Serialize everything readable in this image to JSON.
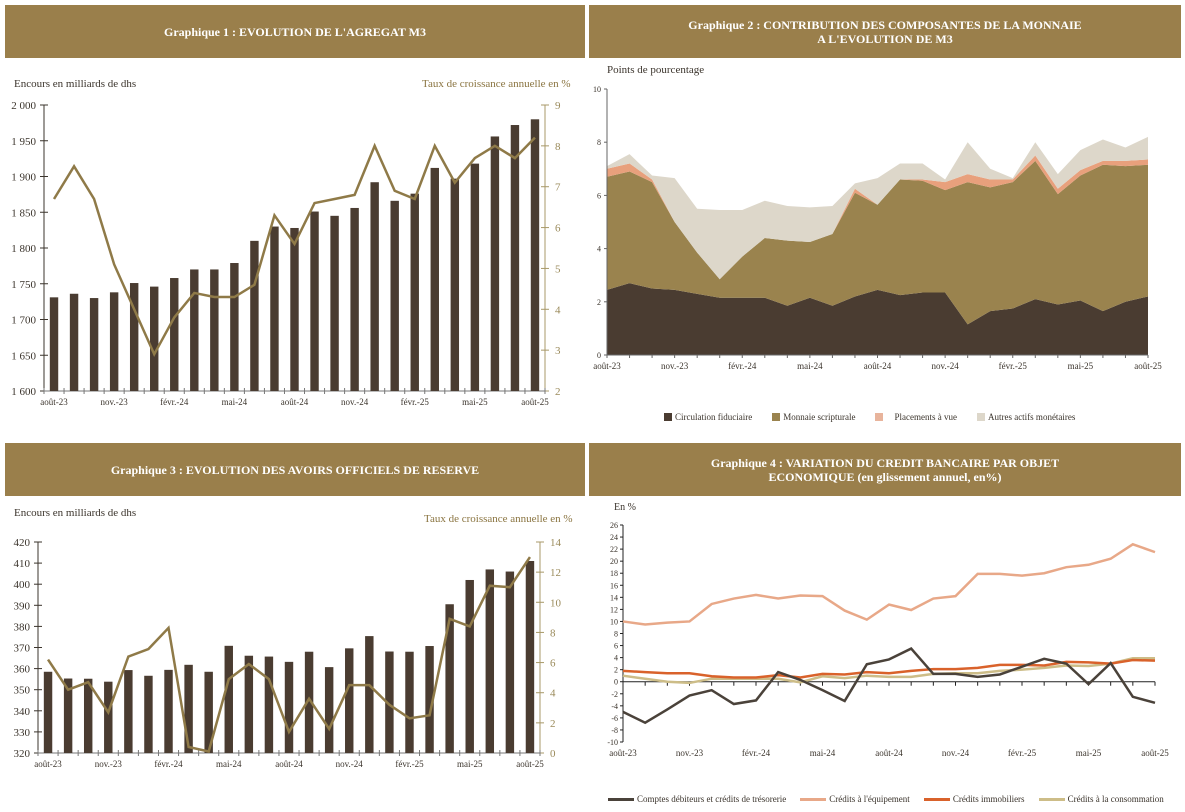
{
  "colors": {
    "header_bg": "#9a7f4b",
    "bar": "#4a3c31",
    "line_gold": "#8f7a48",
    "fiduciaire": "#4a3c31",
    "scripturale": "#9a834e",
    "placements": "#e8a07c",
    "autres": "#ddd7ca",
    "comptes": "#4a423a",
    "equipement": "#e8a888",
    "immobiliers": "#d9622b",
    "consommation": "#cdbd88"
  },
  "months": [
    "août-23",
    "sept.-23",
    "oct.-23",
    "nov.-23",
    "déc.-23",
    "janv.-24",
    "févr.-24",
    "mars-24",
    "avr.-24",
    "mai-24",
    "juin-24",
    "juil.-24",
    "août-24",
    "sept.-24",
    "oct.-24",
    "nov.-24",
    "déc.-24",
    "janv.-25",
    "févr.-25",
    "mars-25",
    "avr.-25",
    "mai-25",
    "juin-25",
    "juil.-25",
    "août-25"
  ],
  "chart_data": [
    {
      "id": "g1",
      "type": "bar",
      "title": "Graphique 1 : EVOLUTION DE L'AGREGAT M3",
      "ylabel": "Encours en milliards de dhs",
      "y2label": "Taux de croissance annuelle en %",
      "ylim": [
        1600,
        2000
      ],
      "yticks": [
        "1 600",
        "1 650",
        "1 700",
        "1 750",
        "1 800",
        "1 850",
        "1 900",
        "1 950",
        "2 000"
      ],
      "y2lim": [
        2,
        9
      ],
      "y2ticks": [
        "2",
        "3",
        "4",
        "5",
        "6",
        "7",
        "8",
        "9"
      ],
      "xtick_labels": [
        "août-23",
        "nov.-23",
        "févr.-24",
        "mai-24",
        "août-24",
        "nov.-24",
        "févr.-25",
        "mai-25",
        "août-25"
      ],
      "series": [
        {
          "name": "Encours M3",
          "kind": "bar",
          "axis": "left",
          "values": [
            1731,
            1736,
            1730,
            1738,
            1751,
            1746,
            1758,
            1770,
            1770,
            1779,
            1810,
            1830,
            1828,
            1851,
            1845,
            1856,
            1892,
            1866,
            1876,
            1912,
            1897,
            1918,
            1956,
            1972,
            1980
          ]
        },
        {
          "name": "Taux de croissance annuelle",
          "kind": "line",
          "axis": "right",
          "values": [
            6.7,
            7.5,
            6.7,
            5.1,
            4.0,
            2.9,
            3.8,
            4.4,
            4.3,
            4.3,
            4.6,
            6.3,
            5.6,
            6.6,
            6.7,
            6.8,
            8.0,
            6.9,
            6.7,
            8.0,
            7.1,
            7.7,
            8.0,
            7.7,
            8.2
          ]
        }
      ]
    },
    {
      "id": "g2",
      "type": "area",
      "title_line1": "Graphique 2 : CONTRIBUTION DES COMPOSANTES DE  LA MONNAIE",
      "title_line2": "A L'EVOLUTION DE M3",
      "ylabel": "Points de pourcentage",
      "ylim": [
        0,
        10
      ],
      "yticks": [
        "0",
        "2",
        "4",
        "6",
        "8",
        "10"
      ],
      "xtick_labels": [
        "août-23",
        "nov.-23",
        "févr.-24",
        "mai-24",
        "août-24",
        "nov.-24",
        "févr.-25",
        "mai-25",
        "août-25"
      ],
      "legend_position": "bottom",
      "series": [
        {
          "name": "Circulation fiduciaire",
          "values": [
            2.45,
            2.7,
            2.5,
            2.45,
            2.3,
            2.15,
            2.15,
            2.15,
            1.85,
            2.15,
            1.85,
            2.2,
            2.45,
            2.25,
            2.35,
            2.35,
            1.15,
            1.65,
            1.75,
            2.1,
            1.9,
            2.05,
            1.65,
            2.0,
            2.2
          ]
        },
        {
          "name": "Monnaie scripturale",
          "values": [
            4.25,
            4.2,
            4.0,
            2.55,
            1.55,
            0.7,
            1.55,
            2.25,
            2.45,
            2.1,
            2.7,
            3.9,
            3.2,
            4.35,
            4.2,
            3.85,
            5.35,
            4.65,
            4.75,
            5.2,
            4.15,
            4.7,
            5.5,
            5.1,
            4.95
          ]
        },
        {
          "name": "Placements à vue",
          "values": [
            0.3,
            0.3,
            0.1,
            0.0,
            0.0,
            0.0,
            0.0,
            0.0,
            0.0,
            0.0,
            0.0,
            0.15,
            0.0,
            0.0,
            0.05,
            0.3,
            0.3,
            0.3,
            0.1,
            0.2,
            0.2,
            0.2,
            0.15,
            0.2,
            0.2
          ]
        },
        {
          "name": "Autres actifs monétaires",
          "values": [
            0.1,
            0.35,
            0.15,
            1.65,
            1.65,
            2.6,
            1.75,
            1.4,
            1.3,
            1.3,
            1.05,
            0.2,
            1.0,
            0.6,
            0.6,
            0.1,
            1.2,
            0.4,
            0.05,
            0.5,
            0.55,
            0.75,
            0.8,
            0.5,
            0.85
          ]
        }
      ]
    },
    {
      "id": "g3",
      "type": "bar",
      "title": "Graphique 3 : EVOLUTION DES AVOIRS OFFICIELS DE RESERVE",
      "ylabel": "Encours en milliards de dhs",
      "y2label": "Taux de croissance annuelle en %",
      "ylim": [
        320,
        420
      ],
      "yticks": [
        "320",
        "330",
        "340",
        "350",
        "360",
        "370",
        "380",
        "390",
        "400",
        "410",
        "420"
      ],
      "y2lim": [
        0,
        14
      ],
      "y2ticks": [
        "0",
        "2",
        "4",
        "6",
        "8",
        "10",
        "12",
        "14"
      ],
      "xtick_labels": [
        "août-23",
        "nov.-23",
        "févr.-24",
        "mai-24",
        "août-24",
        "nov.-24",
        "févr.-25",
        "mai-25",
        "août-25"
      ],
      "series": [
        {
          "name": "Avoirs officiels de réserve",
          "kind": "bar",
          "axis": "left",
          "values": [
            358.5,
            355.3,
            355.2,
            353.8,
            359.3,
            356.6,
            359.4,
            361.8,
            358.5,
            370.8,
            366.1,
            365.7,
            363.2,
            368.0,
            360.7,
            369.6,
            375.4,
            368.1,
            368.0,
            370.7,
            390.5,
            402.0,
            407.0,
            406.0,
            411.0
          ]
        },
        {
          "name": "Taux de croissance annuelle",
          "kind": "line",
          "axis": "right",
          "values": [
            6.2,
            4.2,
            4.7,
            2.7,
            6.4,
            6.9,
            8.3,
            0.4,
            0.1,
            4.9,
            5.9,
            4.9,
            1.4,
            3.6,
            1.6,
            4.5,
            4.5,
            3.2,
            2.3,
            2.5,
            8.9,
            8.4,
            11.1,
            11.0,
            13.0
          ]
        }
      ]
    },
    {
      "id": "g4",
      "type": "line",
      "title_line1": "Graphique 4 : VARIATION DU CREDIT BANCAIRE PAR OBJET",
      "title_line2": "ECONOMIQUE (en glissement annuel, en%)",
      "ylabel": "En %",
      "ylim": [
        -10,
        26
      ],
      "yticks": [
        "-10",
        "-8",
        "-6",
        "-4",
        "-2",
        "0",
        "2",
        "4",
        "6",
        "8",
        "10",
        "12",
        "14",
        "16",
        "18",
        "20",
        "22",
        "24",
        "26"
      ],
      "xtick_labels": [
        "août-23",
        "nov.-23",
        "févr.-24",
        "mai-24",
        "août-24",
        "nov.-24",
        "févr.-25",
        "mai-25",
        "août-25"
      ],
      "legend_position": "bottom",
      "series": [
        {
          "name": "Comptes débiteurs et crédits de trésorerie",
          "values": [
            -5.0,
            -6.8,
            -4.6,
            -2.3,
            -1.4,
            -3.7,
            -3.1,
            1.6,
            0.3,
            -1.4,
            -3.2,
            2.9,
            3.7,
            5.5,
            1.3,
            1.3,
            0.8,
            1.2,
            2.5,
            3.8,
            3.0,
            -0.4,
            3.1,
            -2.5,
            -3.5
          ]
        },
        {
          "name": "Crédits à l'équipement",
          "values": [
            10.0,
            9.5,
            9.8,
            10.0,
            12.9,
            13.8,
            14.4,
            13.8,
            14.3,
            14.2,
            11.8,
            10.3,
            12.8,
            11.9,
            13.8,
            14.2,
            17.9,
            17.9,
            17.6,
            18.0,
            19.0,
            19.4,
            20.4,
            22.8,
            21.5
          ]
        },
        {
          "name": "Crédits immobiliers",
          "values": [
            1.8,
            1.6,
            1.4,
            1.4,
            0.9,
            0.7,
            0.7,
            1.1,
            0.7,
            1.3,
            1.2,
            1.6,
            1.4,
            1.8,
            2.1,
            2.1,
            2.3,
            2.8,
            2.8,
            2.7,
            3.3,
            3.2,
            3.0,
            3.6,
            3.5
          ]
        },
        {
          "name": "Crédits à la consommation",
          "values": [
            1.0,
            0.5,
            0.0,
            -0.2,
            0.5,
            0.5,
            0.5,
            0.5,
            -0.1,
            0.9,
            0.6,
            1.0,
            0.8,
            0.8,
            1.3,
            1.4,
            1.4,
            1.8,
            2.0,
            2.3,
            2.7,
            2.6,
            3.0,
            3.9,
            3.9
          ]
        }
      ]
    }
  ]
}
